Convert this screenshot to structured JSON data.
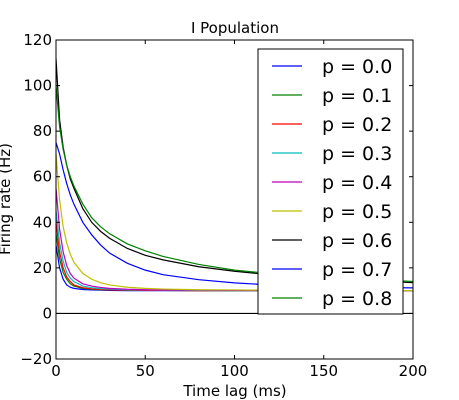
{
  "chart_data": {
    "type": "line",
    "title": "I Population",
    "xlabel": "Time lag (ms)",
    "ylabel": "Firing rate (Hz)",
    "xlim": [
      0,
      200
    ],
    "ylim": [
      -20,
      120
    ],
    "xticks": [
      0,
      50,
      100,
      150,
      200
    ],
    "yticks": [
      -20,
      0,
      20,
      40,
      60,
      80,
      100,
      120
    ],
    "grid": false,
    "legend": "top-right",
    "x": [
      0,
      2,
      4,
      6,
      8,
      10,
      15,
      20,
      25,
      30,
      40,
      50,
      60,
      80,
      100,
      120,
      150,
      175,
      200
    ],
    "series": [
      {
        "name": "p = 0.0",
        "color": "#0000ff",
        "values": [
          30,
          20,
          15,
          12.5,
          11.5,
          11,
          10.5,
          10.3,
          10.2,
          10.1,
          10,
          10,
          10,
          10,
          10,
          10,
          10,
          10,
          10
        ]
      },
      {
        "name": "p = 0.1",
        "color": "#008000",
        "values": [
          35,
          24,
          18,
          15,
          13,
          12,
          11,
          10.6,
          10.4,
          10.3,
          10.2,
          10.1,
          10.1,
          10,
          10,
          10,
          10,
          10,
          10
        ]
      },
      {
        "name": "p = 0.2",
        "color": "#ff0000",
        "values": [
          40,
          27,
          20,
          16,
          14,
          12.5,
          11.3,
          10.8,
          10.5,
          10.4,
          10.2,
          10.1,
          10.1,
          10,
          10,
          10,
          10,
          10,
          10
        ]
      },
      {
        "name": "p = 0.3",
        "color": "#00bfbf",
        "values": [
          45,
          31,
          23,
          18,
          15.5,
          14,
          12,
          11.3,
          10.9,
          10.7,
          10.4,
          10.3,
          10.2,
          10.1,
          10,
          10,
          10,
          10,
          10
        ]
      },
      {
        "name": "p = 0.4",
        "color": "#bf00bf",
        "values": [
          55,
          37,
          27,
          21,
          17.5,
          15.5,
          13,
          12,
          11.4,
          11,
          10.6,
          10.4,
          10.3,
          10.2,
          10.1,
          10,
          10,
          10,
          10
        ]
      },
      {
        "name": "p = 0.5",
        "color": "#bfbf00",
        "values": [
          70,
          50,
          38,
          31,
          26,
          22.5,
          17.5,
          15,
          13.5,
          12.5,
          11.5,
          11,
          10.7,
          10.4,
          10.3,
          10.2,
          10.1,
          10.1,
          10
        ]
      },
      {
        "name": "p = 0.6",
        "color": "#000000",
        "values": [
          112,
          85,
          73,
          65,
          59,
          55,
          46,
          40,
          36,
          33,
          28.5,
          25.5,
          23.5,
          20.5,
          18.5,
          17,
          15.5,
          14.5,
          13.5
        ]
      },
      {
        "name": "p = 0.7",
        "color": "#0000ff",
        "values": [
          75,
          70,
          63,
          57,
          52,
          48,
          40,
          34.5,
          30,
          26.5,
          22,
          19,
          17,
          14.8,
          13.4,
          12.5,
          11.8,
          11.4,
          11.2
        ]
      },
      {
        "name": "p = 0.8",
        "color": "#008000",
        "values": [
          100,
          82,
          72,
          65,
          60,
          56,
          48,
          42,
          38,
          35,
          30.5,
          27.5,
          25,
          21.5,
          19,
          17.5,
          16,
          15,
          14
        ]
      }
    ]
  }
}
